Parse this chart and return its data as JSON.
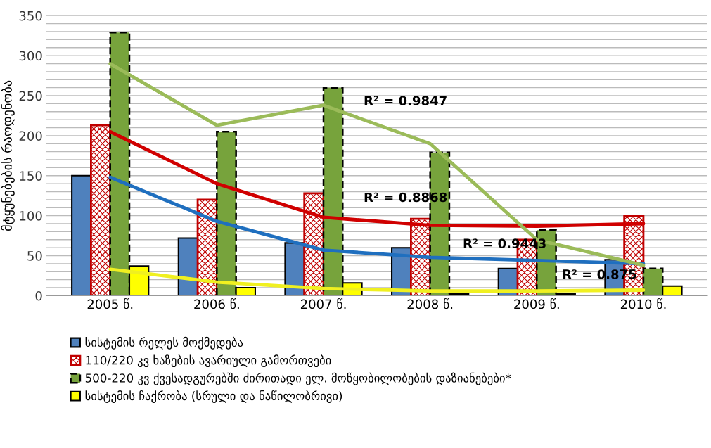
{
  "chart_data": {
    "type": "bar",
    "ylabel": "მტყუნებების რაოდენობა",
    "categories": [
      "2005 წ.",
      "2006 წ.",
      "2007 წ.",
      "2008 წ.",
      "2009 წ.",
      "2010 წ."
    ],
    "series": [
      {
        "name": "სისტემის რელეს მოქმედება",
        "color": "#4f81bd",
        "values": [
          150,
          72,
          66,
          60,
          34,
          45
        ]
      },
      {
        "name": "110/220 კვ ხაზების ავარიული გამორთვები",
        "color": "#c00000",
        "values": [
          213,
          120,
          128,
          96,
          70,
          100
        ]
      },
      {
        "name": "500-220 კვ ქვესადგურებში ძირითადი ელ. მოწყობილობების დაზიანებები*",
        "color": "#77a33c",
        "values": [
          329,
          205,
          260,
          179,
          82,
          34
        ]
      },
      {
        "name": "სისტემის ჩაქრობა (სრული და ნაწილობრივი)",
        "color": "#ffff00",
        "values": [
          37,
          10,
          16,
          2,
          2,
          12
        ]
      },
      {
        "type": "line",
        "color": "#1f6fbf",
        "values": [
          148,
          93,
          57,
          48,
          44,
          40
        ]
      },
      {
        "type": "line",
        "color": "#d00000",
        "values": [
          205,
          140,
          98,
          88,
          87,
          90
        ]
      },
      {
        "type": "line",
        "color": "#9bbb59",
        "values": [
          290,
          213,
          238,
          190,
          70,
          38
        ]
      },
      {
        "type": "line",
        "color": "#f0f020",
        "values": [
          33,
          17,
          9,
          6,
          6,
          7
        ]
      }
    ],
    "ylim": [
      0,
      350
    ],
    "yticks": [
      0,
      50,
      100,
      150,
      200,
      250,
      300,
      350
    ],
    "grid": "y",
    "legend": "bottom left",
    "annotations": [
      "R² = 0.9847",
      "R² = 0.8868",
      "R² = 0.9443",
      "R² = 0.875"
    ]
  }
}
